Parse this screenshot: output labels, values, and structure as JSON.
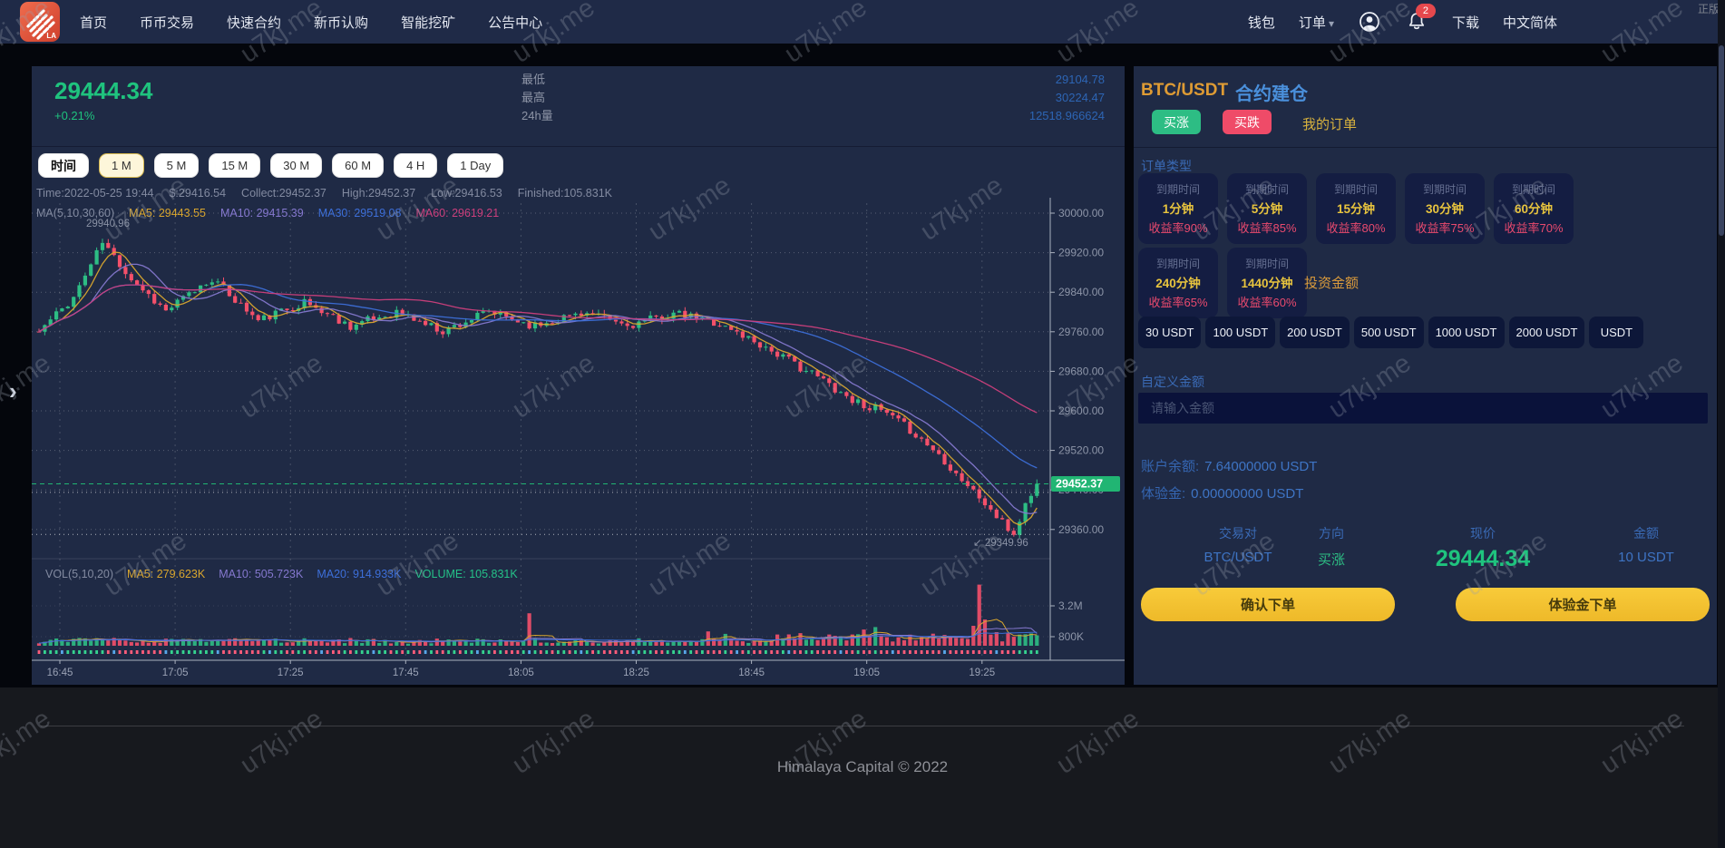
{
  "navbar": {
    "logo_text": "LA",
    "menu": [
      "首页",
      "币币交易",
      "快速合约",
      "新币认购",
      "智能挖矿",
      "公告中心"
    ],
    "wallet": "钱包",
    "orders": "订单",
    "download": "下载",
    "language": "中文简体",
    "notification_count": "2",
    "corner_tag": "正版"
  },
  "market": {
    "price": "29444.34",
    "change": "+0.21%",
    "stats": [
      {
        "label": "最低",
        "value": "29104.78"
      },
      {
        "label": "最高",
        "value": "30224.47"
      },
      {
        "label": "24h量",
        "value": "12518.966624"
      }
    ]
  },
  "intervals": {
    "time_label": "时间",
    "options": [
      "1 M",
      "5 M",
      "15 M",
      "30 M",
      "60 M",
      "4 H",
      "1 Day"
    ],
    "active": "1 M"
  },
  "chart_data": {
    "type": "candlestick",
    "pair": "BTC/USDT",
    "overlay_line1": [
      "Time:2022-05-25 19:44",
      "$:29416.54",
      "Collect:29452.37",
      "High:29452.37",
      "Low:29416.53",
      "Finished:105.831K"
    ],
    "overlay_line2_prefix": "MA(5,10,30,60)",
    "overlay_line2": [
      {
        "text": "MA5: 29443.55",
        "color": "#d9a62e"
      },
      {
        "text": "MA10: 29415.39",
        "color": "#8578cf"
      },
      {
        "text": "MA30: 29519.08",
        "color": "#3d6fd9"
      },
      {
        "text": "MA60: 29619.21",
        "color": "#cc3f7c"
      }
    ],
    "volume_prefix": "VOL(5,10,20)",
    "volume_overlay": [
      {
        "text": "MA5: 279.623K",
        "color": "#d9a62e"
      },
      {
        "text": "MA10: 505.723K",
        "color": "#8578cf"
      },
      {
        "text": "MA20: 914.933K",
        "color": "#3d6fd9"
      },
      {
        "text": "VOLUME: 105.831K",
        "color": "#25c188"
      }
    ],
    "y_axis_labels": [
      "30000.00",
      "29920.00",
      "29840.00",
      "29760.00",
      "29680.00",
      "29600.00",
      "29520.00",
      "29440.00",
      "29360.00"
    ],
    "x_axis_labels": [
      "16:45",
      "17:05",
      "17:25",
      "17:45",
      "18:05",
      "18:25",
      "18:45",
      "19:05",
      "19:25"
    ],
    "volume_axis_labels": [
      "3.2M",
      "800K"
    ],
    "last_price": "29452.37",
    "high_annotation": "29940.96",
    "low_annotation": "↙ 29349.96",
    "y_range_top": 30000,
    "price_step_per_gridline": 80,
    "price_anchors": [
      [
        0,
        29760
      ],
      [
        6,
        29830
      ],
      [
        11,
        29941
      ],
      [
        16,
        29868
      ],
      [
        22,
        29802
      ],
      [
        30,
        29868
      ],
      [
        38,
        29782
      ],
      [
        46,
        29820
      ],
      [
        54,
        29772
      ],
      [
        62,
        29800
      ],
      [
        70,
        29762
      ],
      [
        78,
        29800
      ],
      [
        86,
        29772
      ],
      [
        94,
        29800
      ],
      [
        102,
        29772
      ],
      [
        110,
        29796
      ],
      [
        117,
        29780
      ],
      [
        124,
        29742
      ],
      [
        130,
        29702
      ],
      [
        136,
        29662
      ],
      [
        141,
        29622
      ],
      [
        146,
        29600
      ],
      [
        151,
        29562
      ],
      [
        156,
        29512
      ],
      [
        160,
        29462
      ],
      [
        164,
        29412
      ],
      [
        167,
        29372
      ],
      [
        169,
        29350
      ],
      [
        171,
        29410
      ],
      [
        173,
        29452.37
      ]
    ],
    "volume_spikes": {
      "85": 2600000,
      "116": 1150000,
      "119": 950000,
      "143": 1300000,
      "145": 1500000,
      "162": 1600000,
      "163": 4900000,
      "164": 2100000
    },
    "colors": {
      "up": "#2dbd84",
      "down": "#f4506a",
      "ma5": "#d9a62e",
      "ma10": "#8578cf",
      "ma30": "#3d6fd9",
      "ma60": "#cc3f7c"
    }
  },
  "order_panel": {
    "pair": "BTC/USDT",
    "title": "合约建仓",
    "buy_up": "买涨",
    "buy_down": "买跌",
    "my_orders": "我的订单",
    "order_type_label": "订单类型",
    "expiry_label": "到期时间",
    "order_types": [
      {
        "duration": "1分钟",
        "rate": "收益率90%"
      },
      {
        "duration": "5分钟",
        "rate": "收益率85%"
      },
      {
        "duration": "15分钟",
        "rate": "收益率80%"
      },
      {
        "duration": "30分钟",
        "rate": "收益率75%"
      },
      {
        "duration": "60分钟",
        "rate": "收益率70%"
      },
      {
        "duration": "240分钟",
        "rate": "收益率65%"
      },
      {
        "duration": "1440分钟",
        "rate": "收益率60%"
      }
    ],
    "invest_label": "投资金额",
    "amounts": [
      "30 USDT",
      "100 USDT",
      "200 USDT",
      "500 USDT",
      "1000 USDT",
      "2000 USDT",
      "USDT"
    ],
    "custom_amount_label": "自定义金额",
    "amount_placeholder": "请输入金额",
    "balance_label": "账户余额:",
    "balance_value": "7.64000000 USDT",
    "trial_label": "体验金:",
    "trial_value": "0.00000000 USDT",
    "summary": [
      {
        "label": "交易对",
        "value": "BTC/USDT",
        "style": "blue"
      },
      {
        "label": "方向",
        "value": "买涨",
        "style": "green"
      },
      {
        "label": "现价",
        "value": "29444.34",
        "style": "price"
      },
      {
        "label": "金额",
        "value": "10 USDT",
        "style": "blue"
      }
    ],
    "confirm_button": "确认下单",
    "trial_button": "体验金下单"
  },
  "footer": {
    "copyright": "Himalaya Capital © 2022"
  },
  "watermark": {
    "text": "u7kj.me"
  },
  "side": {
    "expand_arrow": "›"
  }
}
